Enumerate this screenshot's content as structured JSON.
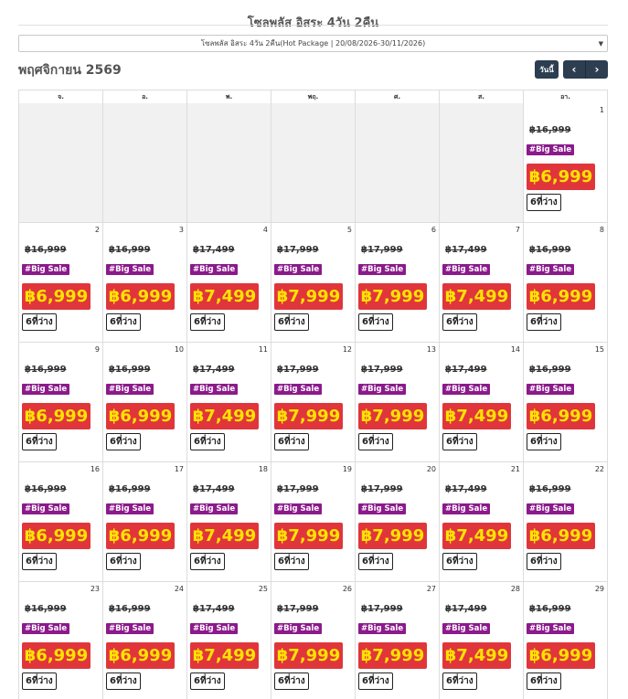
{
  "header": {
    "title": "โซลพลัส อิสระ 4วัน 2คืน",
    "package_select": "โซลพลัส อิสระ 4วัน 2คืน(Hot Package | 20/08/2026-30/11/2026)"
  },
  "toolbar": {
    "month_title": "พฤศจิกายน 2569",
    "today_label": "วันนี้",
    "prev_label": "‹",
    "next_label": "›"
  },
  "calendar": {
    "weekdays": [
      "จ.",
      "อ.",
      "พ.",
      "พฤ.",
      "ศ.",
      "ส.",
      "อา."
    ],
    "badge_label": "#Big Sale",
    "seats_label": "6ที่ว่าง",
    "weeks": [
      [
        {
          "empty": true
        },
        {
          "empty": true
        },
        {
          "empty": true
        },
        {
          "empty": true
        },
        {
          "empty": true
        },
        {
          "empty": true
        },
        {
          "day": "1",
          "old": "฿16,999",
          "price": "฿6,999"
        }
      ],
      [
        {
          "day": "2",
          "old": "฿16,999",
          "price": "฿6,999"
        },
        {
          "day": "3",
          "old": "฿16,999",
          "price": "฿6,999"
        },
        {
          "day": "4",
          "old": "฿17,499",
          "price": "฿7,499"
        },
        {
          "day": "5",
          "old": "฿17,999",
          "price": "฿7,999"
        },
        {
          "day": "6",
          "old": "฿17,999",
          "price": "฿7,999"
        },
        {
          "day": "7",
          "old": "฿17,499",
          "price": "฿7,499"
        },
        {
          "day": "8",
          "old": "฿16,999",
          "price": "฿6,999"
        }
      ],
      [
        {
          "day": "9",
          "old": "฿16,999",
          "price": "฿6,999"
        },
        {
          "day": "10",
          "old": "฿16,999",
          "price": "฿6,999"
        },
        {
          "day": "11",
          "old": "฿17,499",
          "price": "฿7,499"
        },
        {
          "day": "12",
          "old": "฿17,999",
          "price": "฿7,999"
        },
        {
          "day": "13",
          "old": "฿17,999",
          "price": "฿7,999"
        },
        {
          "day": "14",
          "old": "฿17,499",
          "price": "฿7,499"
        },
        {
          "day": "15",
          "old": "฿16,999",
          "price": "฿6,999"
        }
      ],
      [
        {
          "day": "16",
          "old": "฿16,999",
          "price": "฿6,999"
        },
        {
          "day": "17",
          "old": "฿16,999",
          "price": "฿6,999"
        },
        {
          "day": "18",
          "old": "฿17,499",
          "price": "฿7,499"
        },
        {
          "day": "19",
          "old": "฿17,999",
          "price": "฿7,999"
        },
        {
          "day": "20",
          "old": "฿17,999",
          "price": "฿7,999"
        },
        {
          "day": "21",
          "old": "฿17,499",
          "price": "฿7,499"
        },
        {
          "day": "22",
          "old": "฿16,999",
          "price": "฿6,999"
        }
      ],
      [
        {
          "day": "23",
          "old": "฿16,999",
          "price": "฿6,999"
        },
        {
          "day": "24",
          "old": "฿16,999",
          "price": "฿6,999"
        },
        {
          "day": "25",
          "old": "฿17,499",
          "price": "฿7,499"
        },
        {
          "day": "26",
          "old": "฿17,999",
          "price": "฿7,999"
        },
        {
          "day": "27",
          "old": "฿17,999",
          "price": "฿7,999"
        },
        {
          "day": "28",
          "old": "฿17,499",
          "price": "฿7,499"
        },
        {
          "day": "29",
          "old": "฿16,999",
          "price": "฿6,999"
        }
      ]
    ]
  }
}
